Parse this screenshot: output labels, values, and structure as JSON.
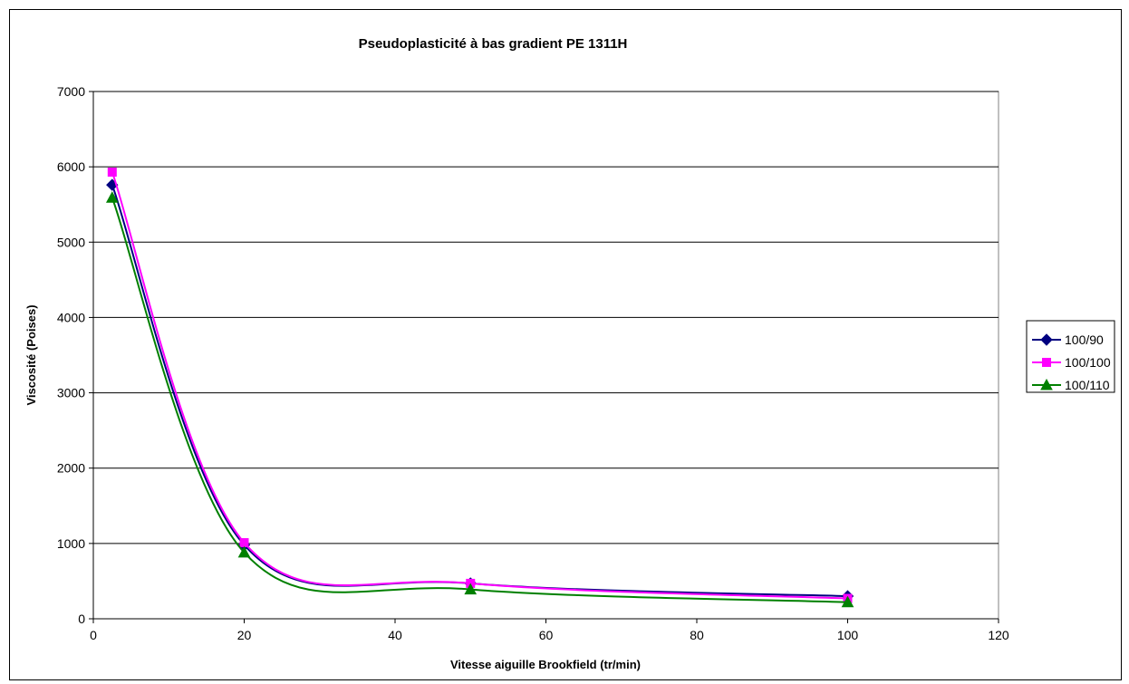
{
  "chart_data": {
    "type": "line",
    "title": "Pseudoplasticité à bas gradient PE 1311H",
    "xlabel": "Vitesse aiguille Brookfield (tr/min)",
    "ylabel": "Viscosité (Poises)",
    "xlim": [
      0,
      120
    ],
    "ylim": [
      0,
      7000
    ],
    "xticks": [
      0,
      20,
      40,
      60,
      80,
      100,
      120
    ],
    "yticks": [
      0,
      1000,
      2000,
      3000,
      4000,
      5000,
      6000,
      7000
    ],
    "grid": "horizontal",
    "legend_position": "right",
    "x": [
      2.5,
      20,
      50,
      100
    ],
    "series": [
      {
        "name": "100/90",
        "values": [
          5760,
          980,
          470,
          300
        ],
        "color": "#000080",
        "marker": "diamond"
      },
      {
        "name": "100/100",
        "values": [
          5930,
          1010,
          470,
          270
        ],
        "color": "#ff00ff",
        "marker": "square"
      },
      {
        "name": "100/110",
        "values": [
          5590,
          880,
          390,
          220
        ],
        "color": "#008000",
        "marker": "triangle"
      }
    ]
  }
}
